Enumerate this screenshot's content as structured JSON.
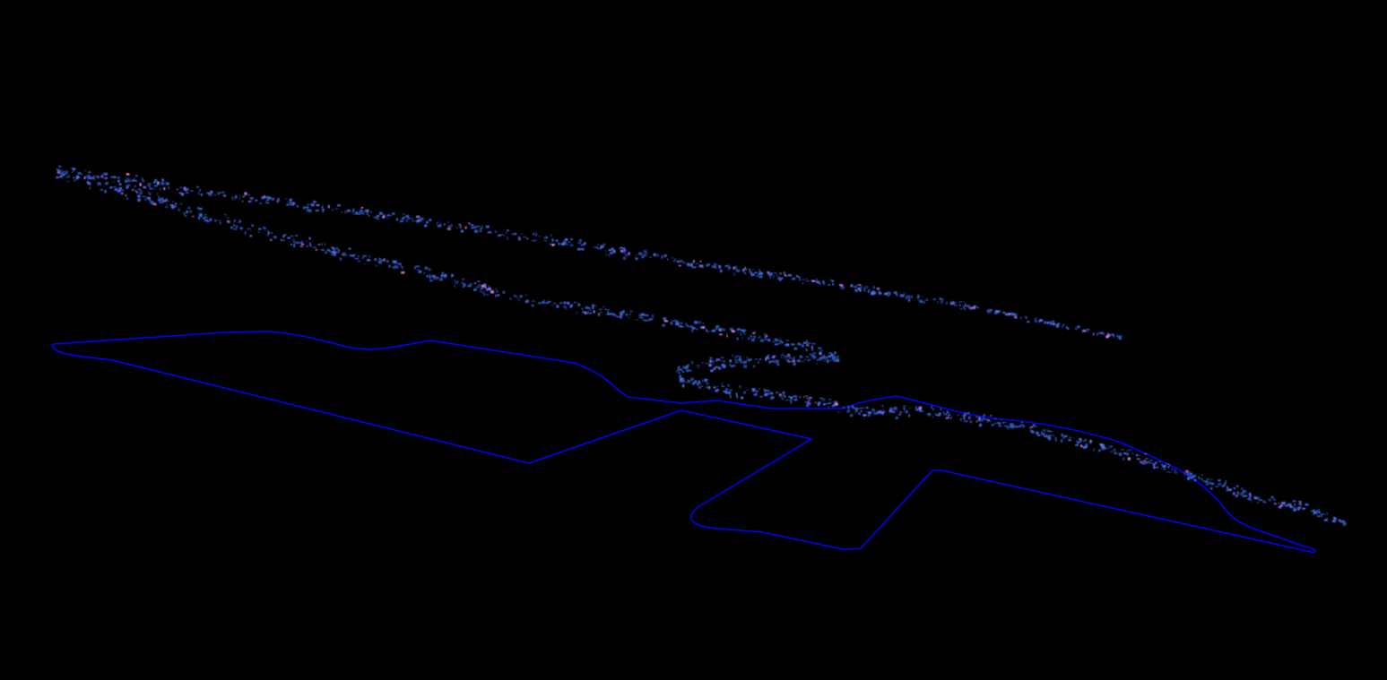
{
  "scene": {
    "type": "lidar-point-cloud-with-trajectory",
    "background_color": "#000000",
    "trajectory_color": "#0000ff",
    "point_cloud_colors": [
      "#1f3f9f",
      "#2f5fcf",
      "#3b6fe0",
      "#4f7fff",
      "#6a5cff",
      "#8f5fe8",
      "#c07cf0",
      "#ff88ee"
    ]
  }
}
